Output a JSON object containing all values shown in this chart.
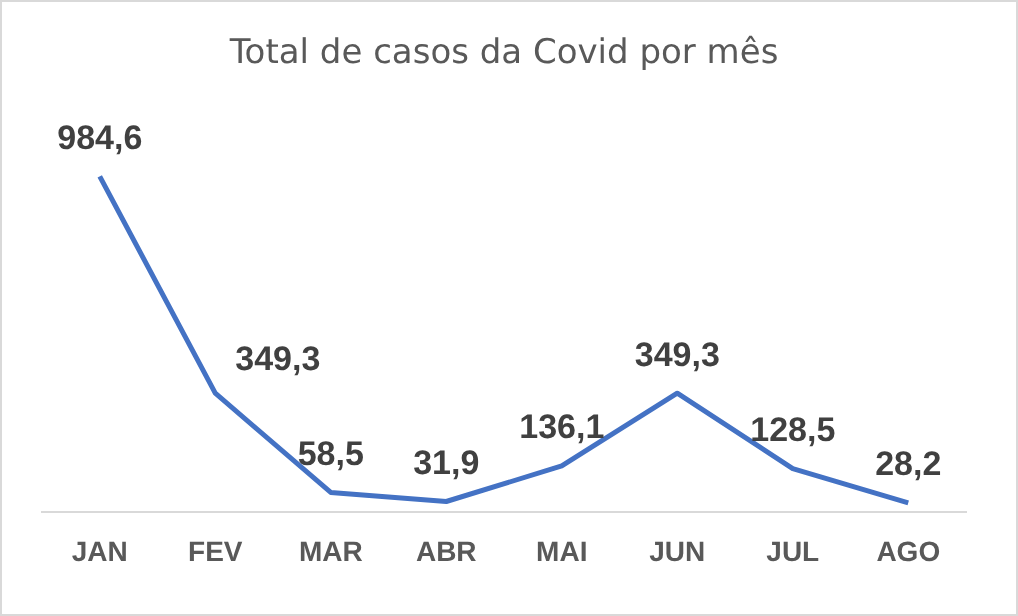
{
  "chart_data": {
    "type": "line",
    "title": "Total de casos da Covid por mês",
    "categories": [
      "JAN",
      "FEV",
      "MAR",
      "ABR",
      "MAI",
      "JUN",
      "JUL",
      "AGO"
    ],
    "series": [
      {
        "color": "#4472c4",
        "values": [
          984.6,
          349.3,
          58.5,
          31.9,
          136.1,
          349.3,
          128.5,
          28.2
        ],
        "value_labels": [
          "984,6",
          "349,3",
          "58,5",
          "31,9",
          "136,1",
          "349,3",
          "128,5",
          "28,2"
        ]
      }
    ],
    "grid": false,
    "legend": false,
    "marker": "none",
    "line_style": "solid"
  }
}
